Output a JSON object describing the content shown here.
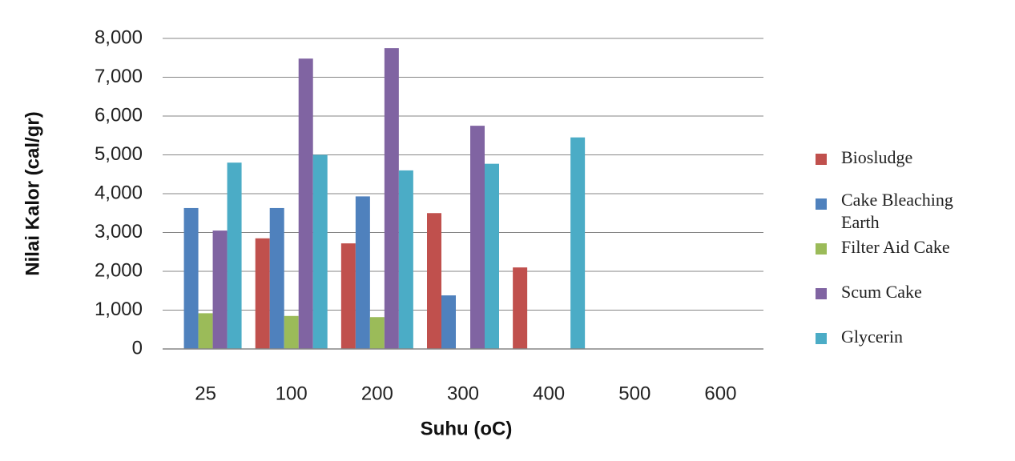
{
  "chart_data": {
    "type": "bar",
    "title": "",
    "xlabel": "Suhu (oC)",
    "ylabel": "Nilai Kalor (cal/gr)",
    "categories": [
      "25",
      "100",
      "200",
      "300",
      "400",
      "500",
      "600"
    ],
    "ylim": [
      0,
      8000
    ],
    "y_ticks": [
      "0",
      "1,000",
      "2,000",
      "3,000",
      "4,000",
      "5,000",
      "6,000",
      "7,000",
      "8,000"
    ],
    "y_tick_values": [
      0,
      1000,
      2000,
      3000,
      4000,
      5000,
      6000,
      7000,
      8000
    ],
    "grid": "horizontal",
    "legend_position": "right",
    "series": [
      {
        "name": "Biosludge",
        "color": "#c0504d",
        "values": [
          0,
          2850,
          2720,
          3500,
          2100,
          0,
          0
        ]
      },
      {
        "name": "Cake Bleaching Earth",
        "color": "#4f81bd",
        "values": [
          3630,
          3630,
          3930,
          1380,
          0,
          0,
          0
        ]
      },
      {
        "name": "Filter Aid Cake",
        "color": "#9bbb59",
        "values": [
          920,
          850,
          820,
          0,
          0,
          0,
          0
        ]
      },
      {
        "name": "Scum Cake",
        "color": "#8064a2",
        "values": [
          3050,
          7480,
          7750,
          5750,
          0,
          0,
          0
        ]
      },
      {
        "name": "Glycerin",
        "color": "#4bacc6",
        "values": [
          4800,
          5000,
          4600,
          4770,
          5450,
          0,
          0
        ]
      }
    ]
  }
}
